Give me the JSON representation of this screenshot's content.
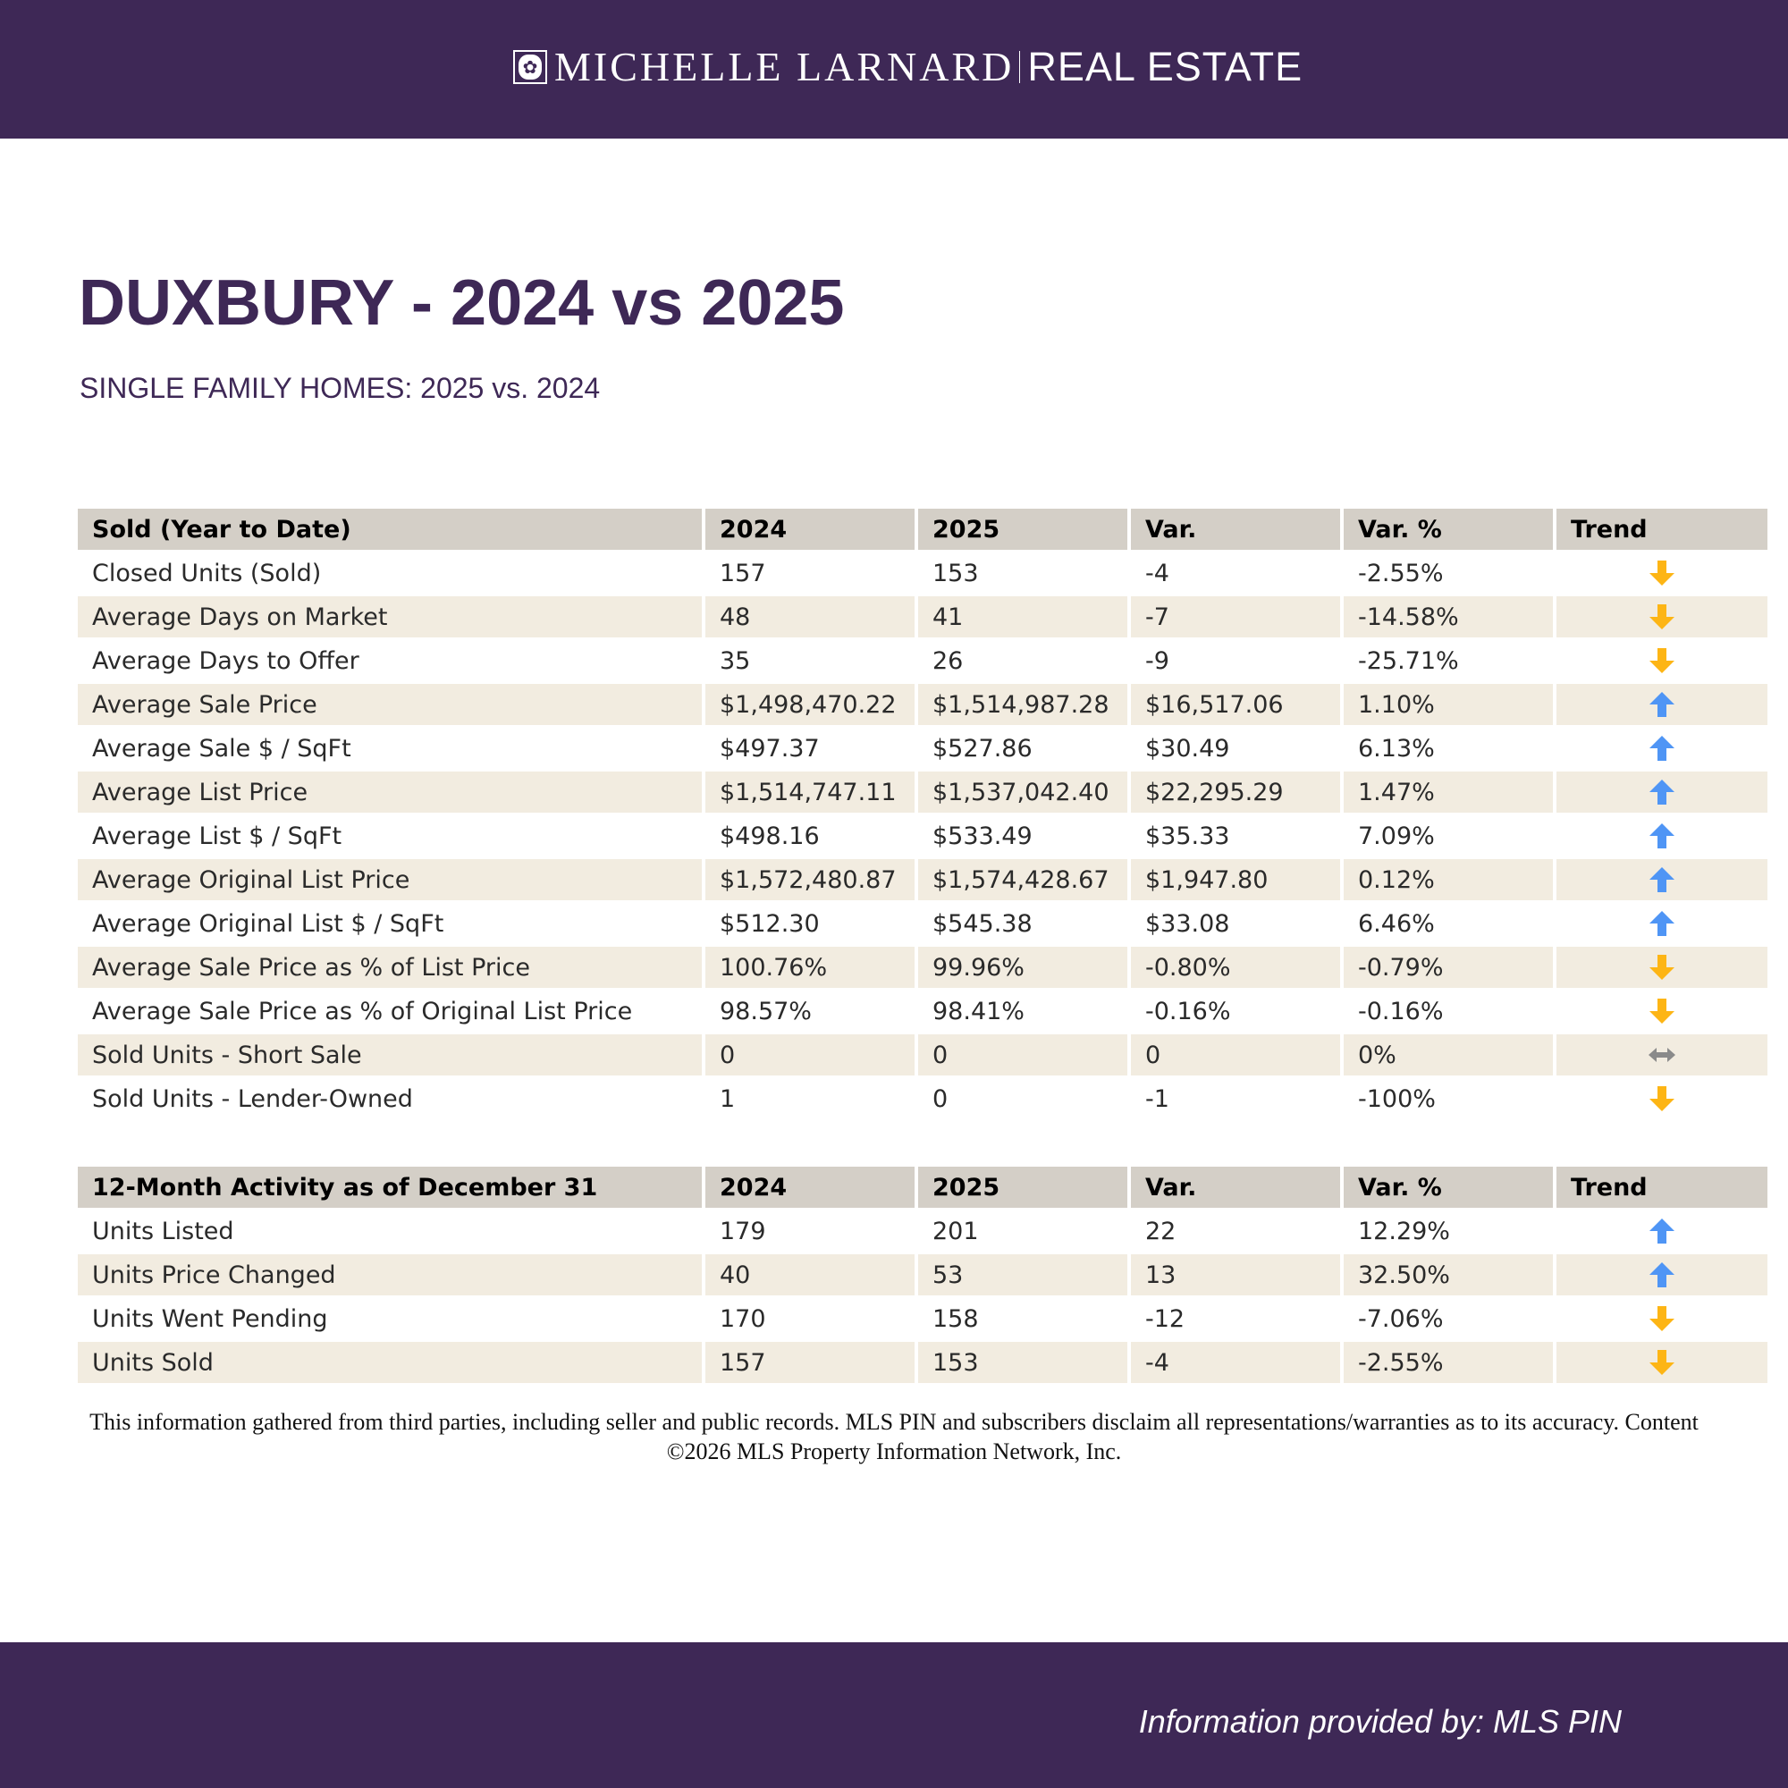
{
  "header": {
    "brand_name": "MICHELLE LARNARD",
    "brand_suffix": "REAL ESTATE"
  },
  "title": "DUXBURY - 2024 vs 2025",
  "subtitle": "SINGLE FAMILY HOMES: 2025 vs. 2024",
  "colors": {
    "brand": "#3e2856",
    "up": "#4f95f5",
    "down": "#fdb515",
    "flat": "#8a8a8a",
    "header_cell": "#d4cfc7",
    "alt_row": "#f2ece0"
  },
  "tables": [
    {
      "headers": [
        "Sold (Year to Date)",
        "2024",
        "2025",
        "Var.",
        "Var. %",
        "Trend"
      ],
      "rows": [
        {
          "label": "Closed Units (Sold)",
          "y2024": "157",
          "y2025": "153",
          "var": "-4",
          "var_pct": "-2.55%",
          "trend": "down"
        },
        {
          "label": "Average Days on Market",
          "y2024": "48",
          "y2025": "41",
          "var": "-7",
          "var_pct": "-14.58%",
          "trend": "down"
        },
        {
          "label": "Average Days to Offer",
          "y2024": "35",
          "y2025": "26",
          "var": "-9",
          "var_pct": "-25.71%",
          "trend": "down"
        },
        {
          "label": "Average Sale Price",
          "y2024": "$1,498,470.22",
          "y2025": "$1,514,987.28",
          "var": "$16,517.06",
          "var_pct": "1.10%",
          "trend": "up"
        },
        {
          "label": "Average Sale $ / SqFt",
          "y2024": "$497.37",
          "y2025": "$527.86",
          "var": "$30.49",
          "var_pct": "6.13%",
          "trend": "up"
        },
        {
          "label": "Average List Price",
          "y2024": "$1,514,747.11",
          "y2025": "$1,537,042.40",
          "var": "$22,295.29",
          "var_pct": "1.47%",
          "trend": "up"
        },
        {
          "label": "Average List $ / SqFt",
          "y2024": "$498.16",
          "y2025": "$533.49",
          "var": "$35.33",
          "var_pct": "7.09%",
          "trend": "up"
        },
        {
          "label": "Average Original List Price",
          "y2024": "$1,572,480.87",
          "y2025": "$1,574,428.67",
          "var": "$1,947.80",
          "var_pct": "0.12%",
          "trend": "up"
        },
        {
          "label": "Average Original List $ / SqFt",
          "y2024": "$512.30",
          "y2025": "$545.38",
          "var": "$33.08",
          "var_pct": "6.46%",
          "trend": "up"
        },
        {
          "label": "Average Sale Price as % of List Price",
          "y2024": "100.76%",
          "y2025": "99.96%",
          "var": "-0.80%",
          "var_pct": "-0.79%",
          "trend": "down"
        },
        {
          "label": "Average Sale Price as % of Original List Price",
          "y2024": "98.57%",
          "y2025": "98.41%",
          "var": "-0.16%",
          "var_pct": "-0.16%",
          "trend": "down"
        },
        {
          "label": "Sold Units - Short Sale",
          "y2024": "0",
          "y2025": "0",
          "var": "0",
          "var_pct": "0%",
          "trend": "flat"
        },
        {
          "label": "Sold Units - Lender-Owned",
          "y2024": "1",
          "y2025": "0",
          "var": "-1",
          "var_pct": "-100%",
          "trend": "down"
        }
      ]
    },
    {
      "headers": [
        "12-Month Activity as of December 31",
        "2024",
        "2025",
        "Var.",
        "Var. %",
        "Trend"
      ],
      "rows": [
        {
          "label": "Units Listed",
          "y2024": "179",
          "y2025": "201",
          "var": "22",
          "var_pct": "12.29%",
          "trend": "up"
        },
        {
          "label": "Units Price Changed",
          "y2024": "40",
          "y2025": "53",
          "var": "13",
          "var_pct": "32.50%",
          "trend": "up"
        },
        {
          "label": "Units Went Pending",
          "y2024": "170",
          "y2025": "158",
          "var": "-12",
          "var_pct": "-7.06%",
          "trend": "down"
        },
        {
          "label": "Units Sold",
          "y2024": "157",
          "y2025": "153",
          "var": "-4",
          "var_pct": "-2.55%",
          "trend": "down"
        }
      ]
    }
  ],
  "disclaimer": "This information gathered from third parties, including seller and public records. MLS PIN and subscribers disclaim all representations/warranties as to its accuracy. Content ©2026 MLS Property Information Network, Inc.",
  "footer": {
    "credit": "Information provided by: MLS PIN"
  }
}
